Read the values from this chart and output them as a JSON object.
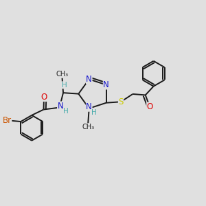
{
  "bg_color": "#e0e0e0",
  "bond_color": "#1a1a1a",
  "bond_width": 1.4,
  "atom_colors": {
    "N": "#1a1acc",
    "O": "#dd0000",
    "S": "#cccc00",
    "Br": "#cc5500",
    "H": "#44aaaa",
    "C": "#1a1a1a"
  },
  "font_size_atom": 8.5,
  "font_size_H": 7.5,
  "font_size_Br": 8.5,
  "font_size_me": 7.0
}
